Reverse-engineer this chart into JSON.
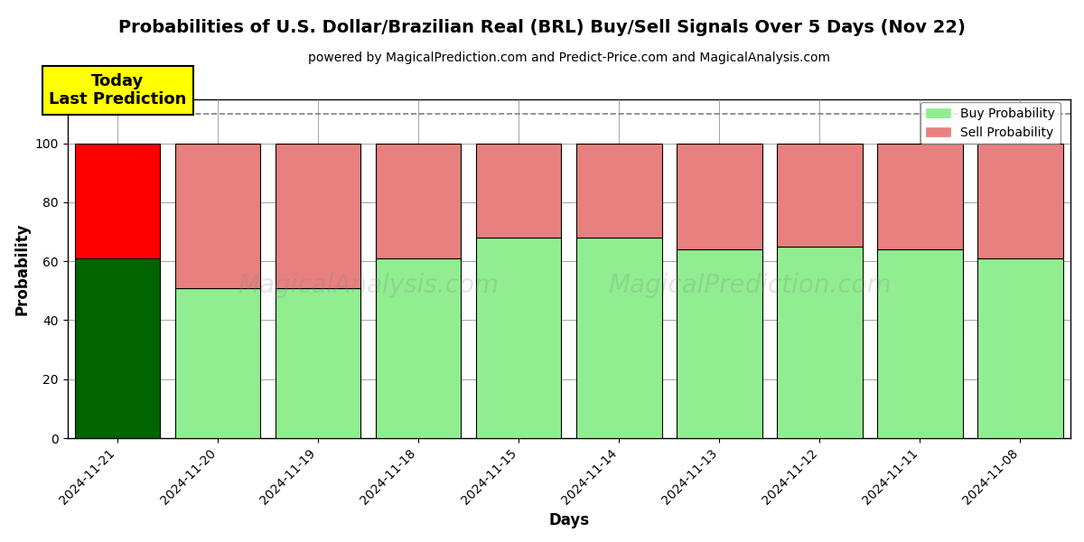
{
  "title": "Probabilities of U.S. Dollar/Brazilian Real (BRL) Buy/Sell Signals Over 5 Days (Nov 22)",
  "subtitle": "powered by MagicalPrediction.com and Predict-Price.com and MagicalAnalysis.com",
  "xlabel": "Days",
  "ylabel": "Probability",
  "categories": [
    "2024-11-21",
    "2024-11-20",
    "2024-11-19",
    "2024-11-18",
    "2024-11-15",
    "2024-11-14",
    "2024-11-13",
    "2024-11-12",
    "2024-11-11",
    "2024-11-08"
  ],
  "buy_values": [
    61,
    51,
    51,
    61,
    68,
    68,
    64,
    65,
    64,
    61
  ],
  "sell_values": [
    39,
    49,
    49,
    39,
    32,
    32,
    36,
    35,
    36,
    39
  ],
  "today_buy_color": "#006400",
  "today_sell_color": "#ff0000",
  "buy_color": "#90ee90",
  "sell_color": "#e88080",
  "today_annotation": "Today\nLast Prediction",
  "ylim": [
    0,
    115
  ],
  "yticks": [
    0,
    20,
    40,
    60,
    80,
    100
  ],
  "dashed_line_y": 110,
  "legend_buy_label": "Buy Probability",
  "legend_sell_label": "Sell Probability",
  "watermark_texts": [
    "MagicalAnalysis.com",
    "MagicalPrediction.com"
  ],
  "background_color": "#ffffff",
  "figsize": [
    12,
    6
  ],
  "dpi": 100
}
